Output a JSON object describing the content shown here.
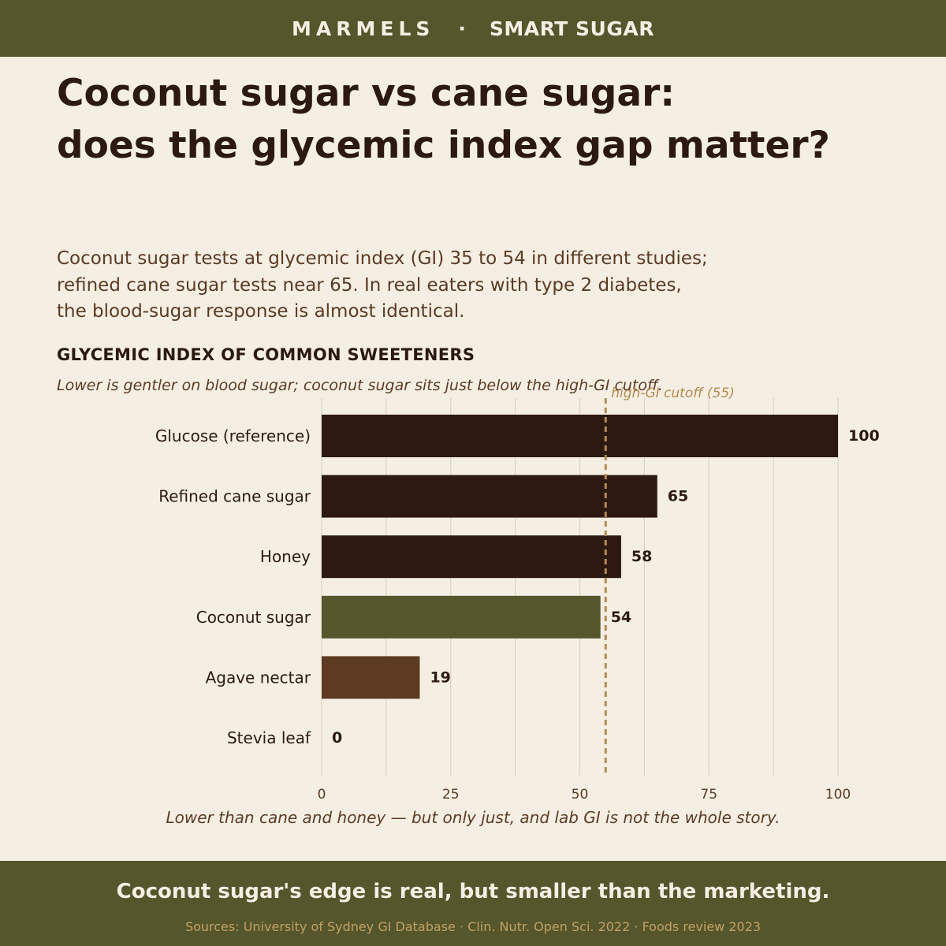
{
  "header": {
    "brand": "MARMELS",
    "separator": "·",
    "product": "SMART SUGAR"
  },
  "headline": {
    "line1": "Coconut sugar vs cane sugar:",
    "line2": "does the glycemic index gap matter?"
  },
  "dek": {
    "line1": "Coconut sugar tests at glycemic index (GI) 35 to 54 in different studies;",
    "line2": "refined cane sugar tests near 65. In real eaters with type 2 diabetes,",
    "line3": "the blood-sugar response is almost identical."
  },
  "caption": "Lower than cane and honey — but only just, and lab GI is not the whole story.",
  "footer": {
    "takeaway": "Coconut sugar's edge is real, but smaller than the marketing.",
    "sources": "Sources: University of Sydney GI Database · Clin. Nutr. Open Sci. 2022 · Foods review 2023"
  },
  "colors": {
    "band": "#55562c",
    "background": "#f5eee3",
    "bar_dark": "#2c1a12",
    "bar_highlight": "#55562c",
    "bar_low": "#5c3b22",
    "cutoff": "#b8894e",
    "gridline": "#ddd3c1"
  },
  "chart_data": {
    "type": "bar",
    "orientation": "horizontal",
    "title": "GLYCEMIC INDEX OF COMMON SWEETENERS",
    "subtitle": "Lower is gentler on blood sugar; coconut sugar sits just below the high-GI cutoff.",
    "categories": [
      "Glucose (reference)",
      "Refined cane sugar",
      "Honey",
      "Coconut sugar",
      "Agave nectar",
      "Stevia leaf"
    ],
    "values": [
      100,
      65,
      58,
      54,
      19,
      0
    ],
    "bar_colors": [
      "#2c1a12",
      "#2c1a12",
      "#2c1a12",
      "#55562c",
      "#5c3b22",
      "#2c1a12"
    ],
    "xlim": [
      0,
      100
    ],
    "xticks": [
      0,
      25,
      50,
      75,
      100
    ],
    "data_labels": true,
    "grid": "vertical",
    "reference_line": {
      "value": 55,
      "label": "high-GI cutoff (55)",
      "style": "dashed"
    }
  }
}
